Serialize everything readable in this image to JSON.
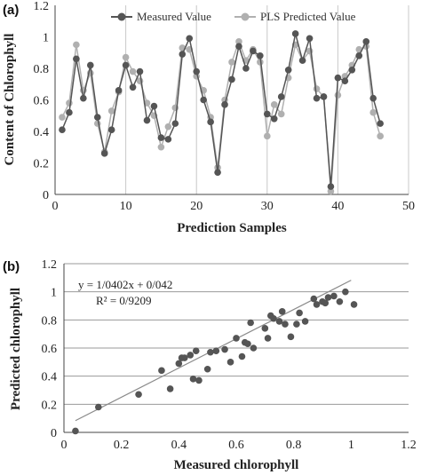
{
  "chart_data": [
    {
      "panel_label": "(a)",
      "type": "line",
      "xlabel": "Prediction Samples",
      "ylabel": "Content of Chlorophyll",
      "xlim": [
        0,
        50
      ],
      "ylim": [
        0,
        1.2
      ],
      "xticks": [
        0,
        10,
        20,
        30,
        40,
        50
      ],
      "yticks": [
        0,
        0.2,
        0.4,
        0.6,
        0.8,
        1,
        1.2
      ],
      "ytick_labels": [
        "0",
        "0.2",
        "0.4",
        "0.6",
        "0.8",
        "1",
        "1.2"
      ],
      "grid": "vertical",
      "legend_position": "top",
      "x": [
        1,
        2,
        3,
        4,
        5,
        6,
        7,
        8,
        9,
        10,
        11,
        12,
        13,
        14,
        15,
        16,
        17,
        18,
        19,
        20,
        21,
        22,
        23,
        24,
        25,
        26,
        27,
        28,
        29,
        30,
        31,
        32,
        33,
        34,
        35,
        36,
        37,
        38,
        39,
        40,
        41,
        42,
        43,
        44,
        45,
        46
      ],
      "series": [
        {
          "name": "Measured Value",
          "color": "#555555",
          "values": [
            0.41,
            0.52,
            0.86,
            0.61,
            0.82,
            0.49,
            0.26,
            0.41,
            0.66,
            0.82,
            0.68,
            0.78,
            0.47,
            0.56,
            0.36,
            0.35,
            0.45,
            0.89,
            0.99,
            0.78,
            0.6,
            0.46,
            0.14,
            0.57,
            0.73,
            0.94,
            0.8,
            0.91,
            0.88,
            0.51,
            0.48,
            0.62,
            0.79,
            1.02,
            0.85,
            0.99,
            0.61,
            0.62,
            0.05,
            0.74,
            0.72,
            0.79,
            0.88,
            0.97,
            0.61,
            0.45
          ]
        },
        {
          "name": "PLS Predicted Value",
          "color": "#b0b0b0",
          "values": [
            0.49,
            0.58,
            0.95,
            0.66,
            0.77,
            0.45,
            0.27,
            0.53,
            0.65,
            0.87,
            0.78,
            0.72,
            0.58,
            0.5,
            0.3,
            0.43,
            0.55,
            0.93,
            0.92,
            0.75,
            0.66,
            0.49,
            0.17,
            0.6,
            0.84,
            0.97,
            0.85,
            0.92,
            0.84,
            0.37,
            0.57,
            0.51,
            0.74,
            0.95,
            0.85,
            0.91,
            0.67,
            0.62,
            0.02,
            0.63,
            0.75,
            0.82,
            0.92,
            0.94,
            0.52,
            0.37
          ]
        }
      ]
    },
    {
      "panel_label": "(b)",
      "type": "scatter",
      "xlabel": "Measured chlorophyll",
      "ylabel": "Predicted chlorophyll",
      "xlim": [
        0,
        1.2
      ],
      "ylim": [
        0,
        1.2
      ],
      "xticks": [
        0,
        0.2,
        0.4,
        0.6,
        0.8,
        1,
        1.2
      ],
      "xtick_labels": [
        "0",
        "0.2",
        "0.4",
        "0.6",
        "0.8",
        "1",
        "1.2"
      ],
      "yticks": [
        0,
        0.2,
        0.4,
        0.6,
        0.8,
        1,
        1.2
      ],
      "ytick_labels": [
        "0",
        "0.2",
        "0.4",
        "0.6",
        "0.8",
        "1",
        "1.2"
      ],
      "grid": "horizontal",
      "equation": "y = 1/0402x + 0/042",
      "r2": "R² = 0/9209",
      "trendline": {
        "slope": 1.0402,
        "intercept": 0.042,
        "x_range": [
          0.04,
          1.0
        ]
      },
      "point_color": "#555555",
      "points": [
        [
          0.04,
          0.01
        ],
        [
          0.12,
          0.18
        ],
        [
          0.26,
          0.27
        ],
        [
          0.34,
          0.44
        ],
        [
          0.37,
          0.31
        ],
        [
          0.4,
          0.49
        ],
        [
          0.41,
          0.53
        ],
        [
          0.42,
          0.53
        ],
        [
          0.44,
          0.55
        ],
        [
          0.45,
          0.38
        ],
        [
          0.46,
          0.58
        ],
        [
          0.47,
          0.37
        ],
        [
          0.5,
          0.45
        ],
        [
          0.51,
          0.57
        ],
        [
          0.53,
          0.58
        ],
        [
          0.56,
          0.59
        ],
        [
          0.58,
          0.5
        ],
        [
          0.6,
          0.67
        ],
        [
          0.62,
          0.54
        ],
        [
          0.63,
          0.64
        ],
        [
          0.64,
          0.63
        ],
        [
          0.65,
          0.78
        ],
        [
          0.66,
          0.6
        ],
        [
          0.7,
          0.74
        ],
        [
          0.71,
          0.67
        ],
        [
          0.72,
          0.83
        ],
        [
          0.73,
          0.81
        ],
        [
          0.75,
          0.79
        ],
        [
          0.76,
          0.86
        ],
        [
          0.77,
          0.77
        ],
        [
          0.79,
          0.68
        ],
        [
          0.81,
          0.77
        ],
        [
          0.82,
          0.85
        ],
        [
          0.84,
          0.79
        ],
        [
          0.87,
          0.95
        ],
        [
          0.88,
          0.91
        ],
        [
          0.9,
          0.93
        ],
        [
          0.91,
          0.92
        ],
        [
          0.92,
          0.96
        ],
        [
          0.94,
          0.97
        ],
        [
          0.96,
          0.93
        ],
        [
          0.98,
          1.0
        ],
        [
          1.01,
          0.91
        ]
      ]
    }
  ]
}
